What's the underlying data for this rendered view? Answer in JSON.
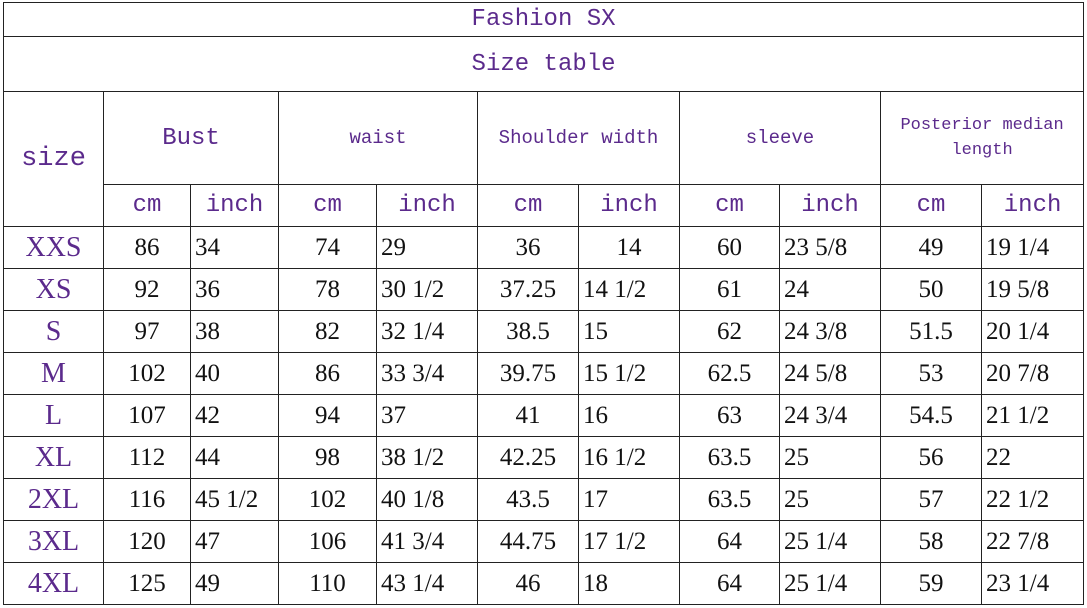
{
  "title": "Fashion SX",
  "subtitle": "Size table",
  "headers": {
    "size": "size",
    "bust": "Bust",
    "waist": "waist",
    "shoulder": "Shoulder width",
    "sleeve": "sleeve",
    "length": "Posterior median length",
    "cm": "cm",
    "inch": "inch"
  },
  "accent_color": "#5b2a8c",
  "rows": [
    {
      "size": "XXS",
      "bust_cm": "86",
      "bust_in": "34",
      "waist_cm": "74",
      "waist_in": "29",
      "shoulder_cm": "36",
      "shoulder_in": "14",
      "sleeve_cm": "60",
      "sleeve_in": "23 5/8",
      "length_cm": "49",
      "length_in": "19 1/4"
    },
    {
      "size": "XS",
      "bust_cm": "92",
      "bust_in": "36",
      "waist_cm": "78",
      "waist_in": "30 1/2",
      "shoulder_cm": "37.25",
      "shoulder_in": "14 1/2",
      "sleeve_cm": "61",
      "sleeve_in": "24",
      "length_cm": "50",
      "length_in": "19 5/8"
    },
    {
      "size": "S",
      "bust_cm": "97",
      "bust_in": "38",
      "waist_cm": "82",
      "waist_in": "32 1/4",
      "shoulder_cm": "38.5",
      "shoulder_in": "15",
      "sleeve_cm": "62",
      "sleeve_in": "24 3/8",
      "length_cm": "51.5",
      "length_in": "20 1/4"
    },
    {
      "size": "M",
      "bust_cm": "102",
      "bust_in": "40",
      "waist_cm": "86",
      "waist_in": "33 3/4",
      "shoulder_cm": "39.75",
      "shoulder_in": "15 1/2",
      "sleeve_cm": "62.5",
      "sleeve_in": "24 5/8",
      "length_cm": "53",
      "length_in": "20 7/8"
    },
    {
      "size": "L",
      "bust_cm": "107",
      "bust_in": "42",
      "waist_cm": "94",
      "waist_in": "37",
      "shoulder_cm": "41",
      "shoulder_in": "16",
      "sleeve_cm": "63",
      "sleeve_in": "24 3/4",
      "length_cm": "54.5",
      "length_in": "21 1/2"
    },
    {
      "size": "XL",
      "bust_cm": "112",
      "bust_in": "44",
      "waist_cm": "98",
      "waist_in": "38 1/2",
      "shoulder_cm": "42.25",
      "shoulder_in": "16 1/2",
      "sleeve_cm": "63.5",
      "sleeve_in": "25",
      "length_cm": "56",
      "length_in": "22"
    },
    {
      "size": "2XL",
      "bust_cm": "116",
      "bust_in": "45 1/2",
      "waist_cm": "102",
      "waist_in": "40 1/8",
      "shoulder_cm": "43.5",
      "shoulder_in": "17",
      "sleeve_cm": "63.5",
      "sleeve_in": "25",
      "length_cm": "57",
      "length_in": "22 1/2"
    },
    {
      "size": "3XL",
      "bust_cm": "120",
      "bust_in": "47",
      "waist_cm": "106",
      "waist_in": "41 3/4",
      "shoulder_cm": "44.75",
      "shoulder_in": "17 1/2",
      "sleeve_cm": "64",
      "sleeve_in": "25 1/4",
      "length_cm": "58",
      "length_in": "22 7/8"
    },
    {
      "size": "4XL",
      "bust_cm": "125",
      "bust_in": "49",
      "waist_cm": "110",
      "waist_in": "43 1/4",
      "shoulder_cm": "46",
      "shoulder_in": "18",
      "sleeve_cm": "64",
      "sleeve_in": "25 1/4",
      "length_cm": "59",
      "length_in": "23 1/4"
    }
  ]
}
